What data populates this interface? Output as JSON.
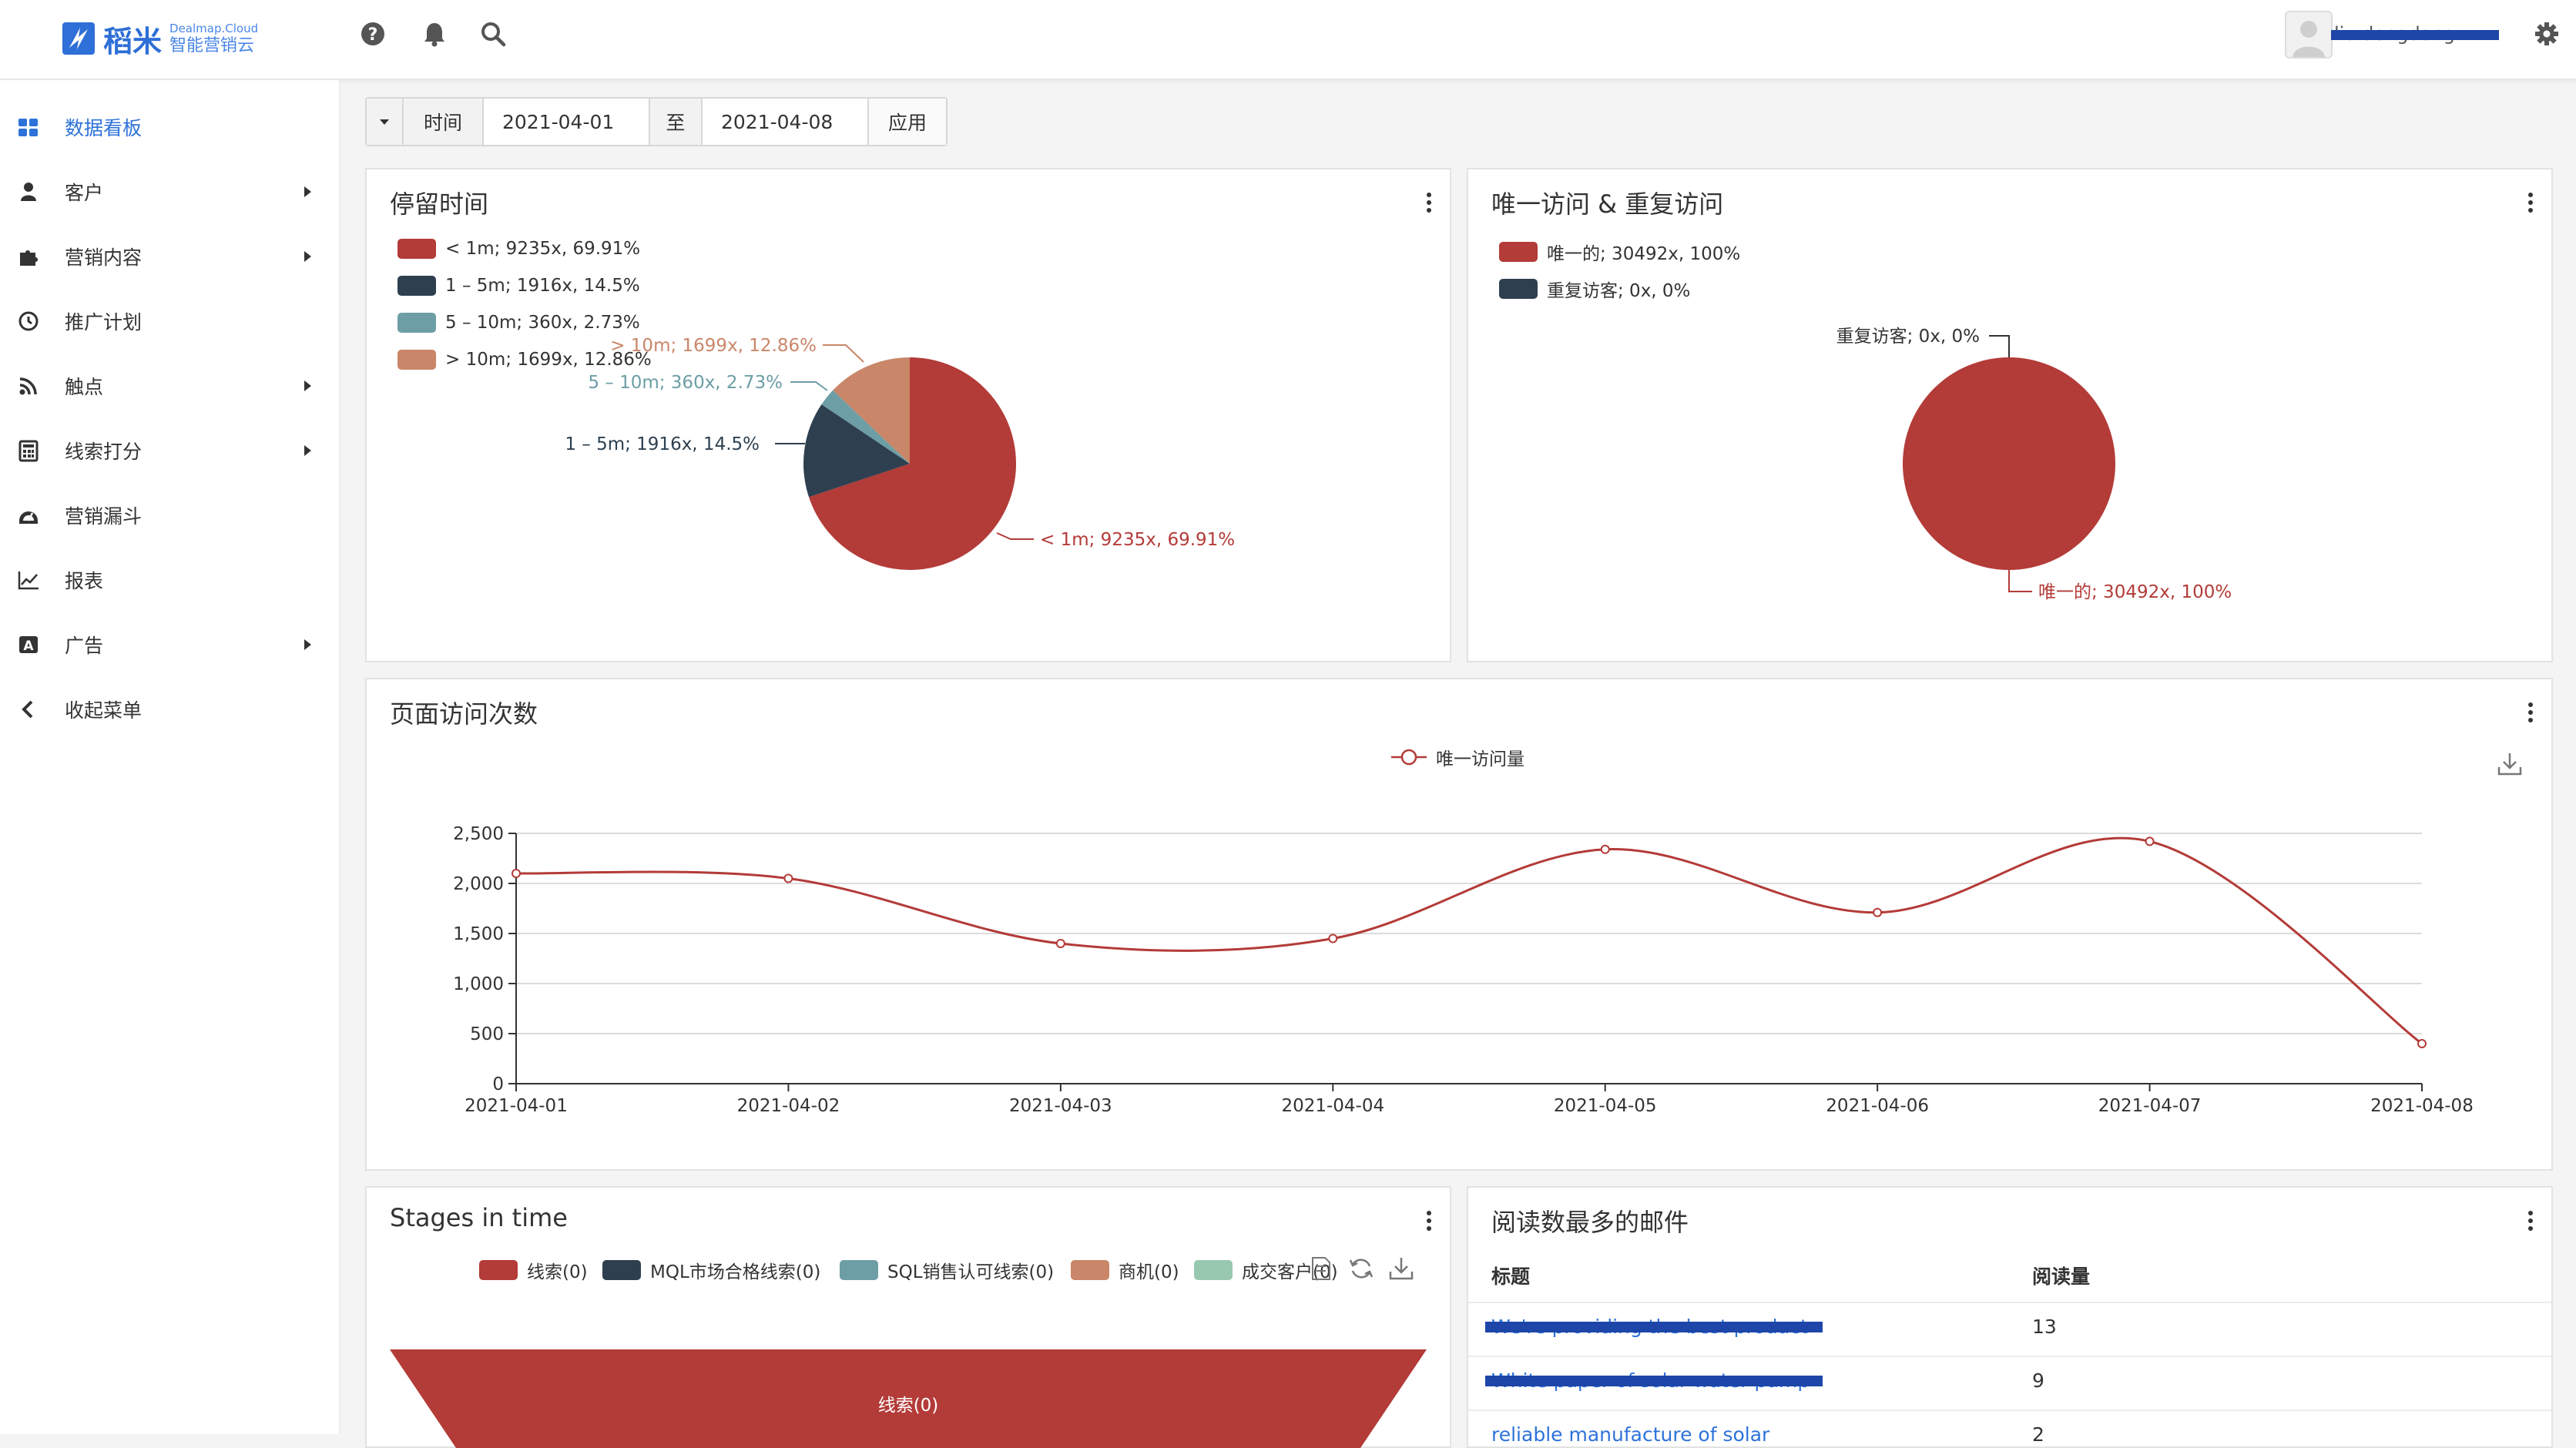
{
  "app": {
    "logo_name": "稻米",
    "logo_en": "Dealmap.Cloud",
    "logo_cn": "智能营销云",
    "user_name": "liu.dongdong"
  },
  "sidebar": {
    "items": [
      {
        "label": "数据看板",
        "icon": "dashboard-icon",
        "active": true
      },
      {
        "label": "客户",
        "icon": "user-icon",
        "submenu": true
      },
      {
        "label": "营销内容",
        "icon": "puzzle-icon",
        "submenu": true
      },
      {
        "label": "推广计划",
        "icon": "clock-icon"
      },
      {
        "label": "触点",
        "icon": "rss-icon",
        "submenu": true
      },
      {
        "label": "线索打分",
        "icon": "calculator-icon",
        "submenu": true
      },
      {
        "label": "营销漏斗",
        "icon": "gauge-icon"
      },
      {
        "label": "报表",
        "icon": "line-chart-icon"
      },
      {
        "label": "广告",
        "icon": "ad-icon",
        "submenu": true
      },
      {
        "label": "收起菜单",
        "icon": "chevron-left-icon"
      }
    ]
  },
  "filter": {
    "label": "时间",
    "from": "2021-04-01",
    "separator": "至",
    "to": "2021-04-08",
    "apply": "应用"
  },
  "cards": {
    "dwell": {
      "title": "停留时间",
      "legend": [
        "< 1m; 9235x, 69.91%",
        "1 – 5m; 1916x, 14.5%",
        "5 – 10m; 360x, 2.73%",
        "> 10m; 1699x, 12.86%"
      ]
    },
    "visits": {
      "title": "唯一访问 & 重复访问",
      "legend": [
        "唯一的; 30492x, 100%",
        "重复访客; 0x, 0%"
      ]
    },
    "pageviews": {
      "title": "页面访问次数",
      "legend": "唯一访问量"
    },
    "stages": {
      "title": "Stages in time",
      "legend": [
        "线索(0)",
        "MQL市场合格线索(0)",
        "SQL销售认可线索(0)",
        "商机(0)",
        "成交客户(0)"
      ],
      "funnel_label": "线索(0)"
    },
    "emails": {
      "title": "阅读数最多的邮件",
      "col_title": "标题",
      "col_reads": "阅读量",
      "rows": [
        {
          "title": "We're providing the best product",
          "reads": "13"
        },
        {
          "title": "White paper of solar water pump",
          "reads": "9"
        },
        {
          "title": "reliable manufacture of solar",
          "reads": "2"
        }
      ]
    }
  },
  "chart_data": [
    {
      "type": "pie",
      "title": "停留时间",
      "labels": [
        "< 1m",
        "1 – 5m",
        "5 – 10m",
        "> 10m"
      ],
      "values": [
        9235,
        1916,
        360,
        1699
      ],
      "percents": [
        69.91,
        14.5,
        2.73,
        12.86
      ],
      "data_labels": [
        "< 1m; 9235x, 69.91%",
        "1 – 5m; 1916x, 14.5%",
        "5 – 10m; 360x, 2.73%",
        "> 10m; 1699x, 12.86%"
      ],
      "colors": [
        "#b33b38",
        "#2e4050",
        "#6d9ea6",
        "#c98668"
      ]
    },
    {
      "type": "pie",
      "title": "唯一访问 & 重复访问",
      "labels": [
        "唯一的",
        "重复访客"
      ],
      "values": [
        30492,
        0
      ],
      "percents": [
        100,
        0
      ],
      "data_labels": [
        "唯一的; 30492x, 100%",
        "重复访客; 0x, 0%"
      ],
      "colors": [
        "#b33b38",
        "#2e4050"
      ]
    },
    {
      "type": "line",
      "title": "页面访问次数",
      "series_name": "唯一访问量",
      "x": [
        "2021-04-01",
        "2021-04-02",
        "2021-04-03",
        "2021-04-04",
        "2021-04-05",
        "2021-04-06",
        "2021-04-07",
        "2021-04-08"
      ],
      "values": [
        2100,
        2050,
        1400,
        1450,
        2340,
        1710,
        2420,
        400
      ],
      "yticks": [
        "0",
        "500",
        "1,000",
        "1,500",
        "2,000",
        "2,500"
      ],
      "ylim": [
        0,
        2500
      ],
      "color": "#b33b38"
    }
  ]
}
